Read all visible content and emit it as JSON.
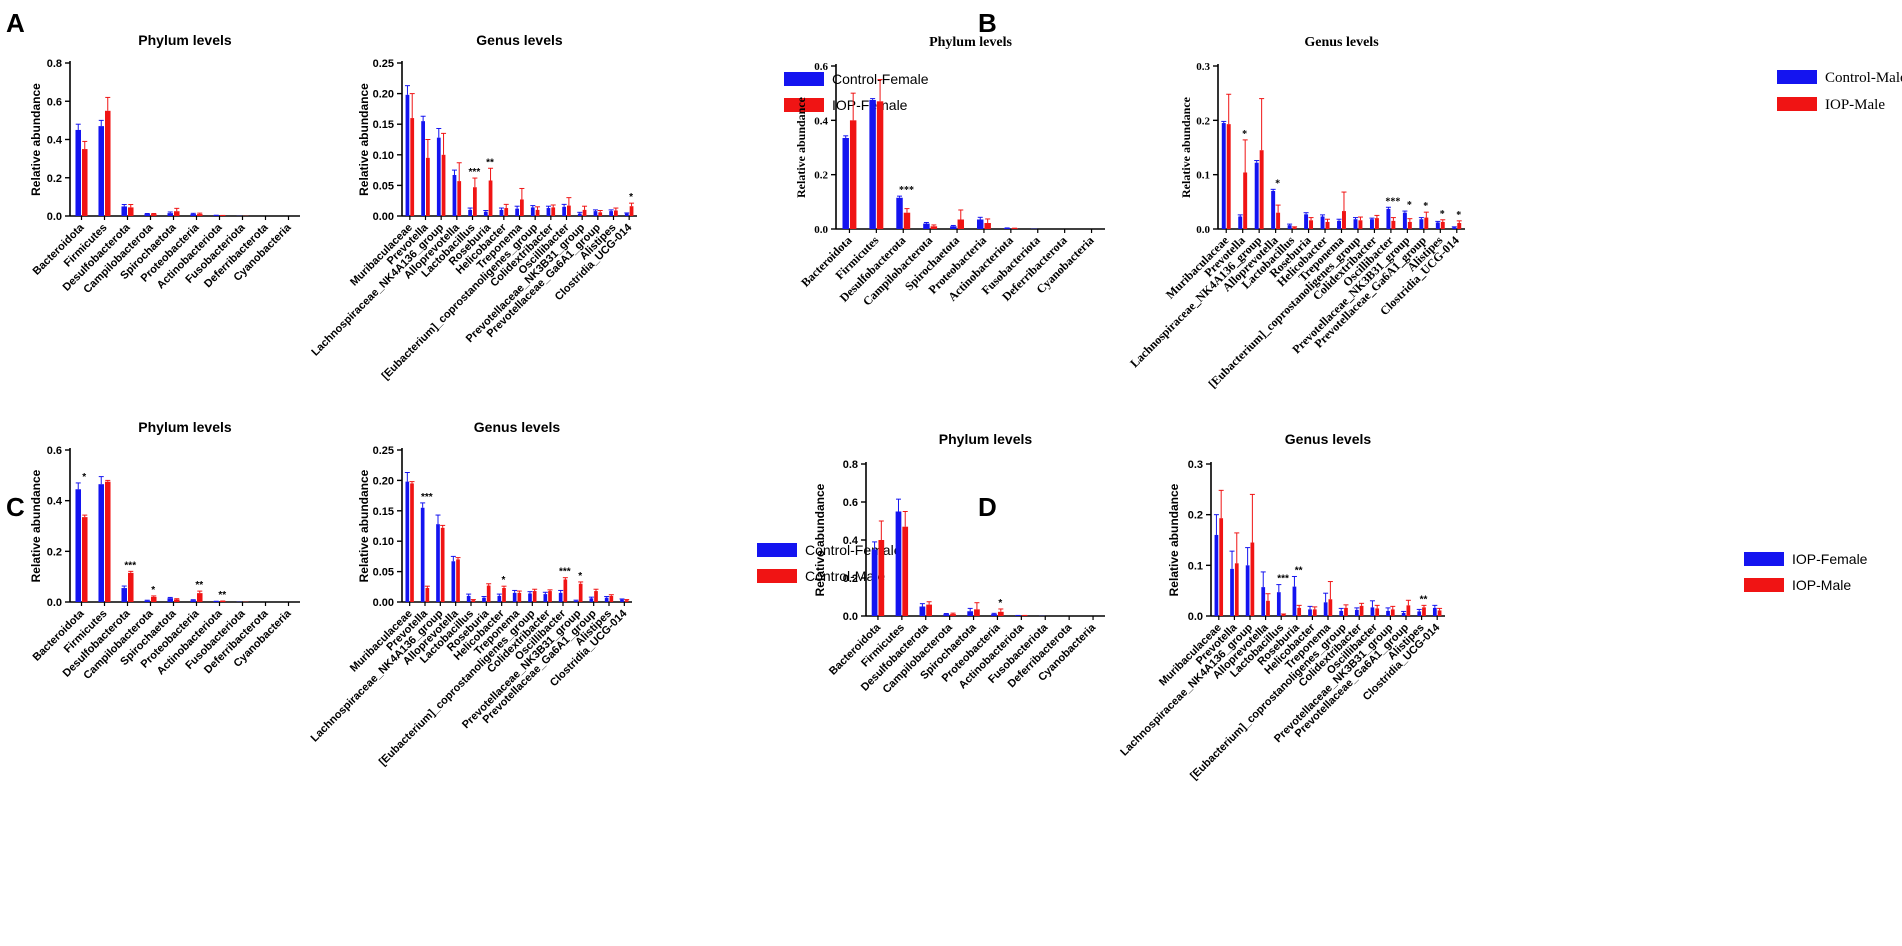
{
  "colors": {
    "blue": "#1414F0",
    "red": "#F01414",
    "axis": "#000000"
  },
  "panel_labels": [
    "A",
    "B",
    "C",
    "D"
  ],
  "legends": [
    [
      "Control-Female",
      "IOP-Female"
    ],
    [
      "Control-Male",
      "IOP-Male"
    ],
    [
      "Control-Female",
      "Control-Male"
    ],
    [
      "IOP-Female",
      "IOP-Male"
    ]
  ],
  "chart_data": [
    {
      "panel": "A",
      "type": "bar",
      "title": "Phylum levels",
      "ylabel": "Relative abundance",
      "xlabel": "",
      "ylim": [
        0,
        0.8
      ],
      "yticks": [
        0.0,
        0.2,
        0.4,
        0.6,
        0.8
      ],
      "ytick_labels": [
        "0.0",
        "0.2",
        "0.4",
        "0.6",
        "0.8"
      ],
      "categories": [
        "Bacteroidota",
        "Firmicutes",
        "Desulfobacterota",
        "Campilobacterota",
        "Spirochaetota",
        "Proteobacteria",
        "Actinobacteriota",
        "Fusobacteriota",
        "Deferribacterota",
        "Cyanobacteria"
      ],
      "series": [
        {
          "name": "Control-Female",
          "values": [
            0.45,
            0.47,
            0.05,
            0.01,
            0.015,
            0.01,
            0.003,
            0.001,
            0.0,
            0.0
          ],
          "errors": [
            0.03,
            0.03,
            0.01,
            0.003,
            0.006,
            0.004,
            0.001,
            0.0,
            0.0,
            0.0
          ]
        },
        {
          "name": "IOP-Female",
          "values": [
            0.35,
            0.55,
            0.045,
            0.01,
            0.025,
            0.01,
            0.002,
            0.001,
            0.0,
            0.0
          ],
          "errors": [
            0.04,
            0.07,
            0.015,
            0.003,
            0.015,
            0.005,
            0.001,
            0.0,
            0.0,
            0.0
          ]
        }
      ],
      "annotations": []
    },
    {
      "panel": "A",
      "type": "bar",
      "title": "Genus levels",
      "ylabel": "Relative abundance",
      "xlabel": "",
      "ylim": [
        0,
        0.25
      ],
      "yticks": [
        0.0,
        0.05,
        0.1,
        0.15,
        0.2,
        0.25
      ],
      "ytick_labels": [
        "0.00",
        "0.05",
        "0.10",
        "0.15",
        "0.20",
        "0.25"
      ],
      "categories": [
        "Muribaculaceae",
        "Prevotella",
        "Lachnospiraceae_NK4A136_group",
        "Alloprevotella",
        "Lactobacillus",
        "Roseburia",
        "Helicobacter",
        "Treponema",
        "[Eubacterium]_coprostanoligenes_group",
        "Colidextribacter",
        "Oscillibacter",
        "Prevotellaceae_NK3B31_group",
        "Prevotellaceae_Ga6A1_group",
        "Alistipes",
        "Clostridia_UCG-014"
      ],
      "series": [
        {
          "name": "Control-Female",
          "values": [
            0.198,
            0.155,
            0.128,
            0.067,
            0.01,
            0.007,
            0.01,
            0.012,
            0.014,
            0.013,
            0.015,
            0.004,
            0.008,
            0.008,
            0.004
          ],
          "errors": [
            0.015,
            0.008,
            0.015,
            0.008,
            0.003,
            0.002,
            0.003,
            0.004,
            0.003,
            0.003,
            0.004,
            0.002,
            0.002,
            0.002,
            0.001
          ]
        },
        {
          "name": "IOP-Female",
          "values": [
            0.16,
            0.095,
            0.1,
            0.057,
            0.047,
            0.058,
            0.013,
            0.027,
            0.01,
            0.014,
            0.017,
            0.01,
            0.006,
            0.009,
            0.016
          ],
          "errors": [
            0.04,
            0.03,
            0.035,
            0.03,
            0.015,
            0.02,
            0.006,
            0.018,
            0.005,
            0.004,
            0.013,
            0.006,
            0.003,
            0.004,
            0.005
          ]
        }
      ],
      "annotations": [
        {
          "category": "Lactobacillus",
          "text": "***"
        },
        {
          "category": "Roseburia",
          "text": "**"
        },
        {
          "category": "Clostridia_UCG-014",
          "text": "*"
        }
      ]
    },
    {
      "panel": "B",
      "type": "bar",
      "title": "Phylum levels",
      "ylabel": "Relative abundance",
      "xlabel": "",
      "ylim": [
        0,
        0.6
      ],
      "yticks": [
        0.0,
        0.2,
        0.4,
        0.6
      ],
      "ytick_labels": [
        "0.0",
        "0.2",
        "0.4",
        "0.6"
      ],
      "categories": [
        "Bacteroidota",
        "Firmicutes",
        "Desulfobacterota",
        "Campilobacterota",
        "Spirochaetota",
        "Proteobacteria",
        "Actinobacteriota",
        "Fusobacteriota",
        "Deferribacterota",
        "Cyanobacteria"
      ],
      "series": [
        {
          "name": "Control-Male",
          "values": [
            0.335,
            0.475,
            0.115,
            0.02,
            0.01,
            0.035,
            0.003,
            0.001,
            0.0,
            0.0
          ],
          "errors": [
            0.008,
            0.005,
            0.006,
            0.004,
            0.003,
            0.008,
            0.001,
            0.0,
            0.0,
            0.0
          ]
        },
        {
          "name": "IOP-Male",
          "values": [
            0.4,
            0.47,
            0.06,
            0.01,
            0.035,
            0.022,
            0.002,
            0.0,
            0.0,
            0.0
          ],
          "errors": [
            0.1,
            0.08,
            0.015,
            0.005,
            0.035,
            0.015,
            0.001,
            0.0,
            0.0,
            0.0
          ]
        }
      ],
      "annotations": [
        {
          "category": "Desulfobacterota",
          "text": "***"
        }
      ]
    },
    {
      "panel": "B",
      "type": "bar",
      "title": "Genus levels",
      "ylabel": "Relative abundance",
      "xlabel": "",
      "ylim": [
        0,
        0.3
      ],
      "yticks": [
        0.0,
        0.1,
        0.2,
        0.3
      ],
      "ytick_labels": [
        "0.0",
        "0.1",
        "0.2",
        "0.3"
      ],
      "categories": [
        "Muribaculaceae",
        "Prevotella",
        "Lachnospiraceae_NK4A136_group",
        "Alloprevotella",
        "Lactobacillus",
        "Roseburia",
        "Helicobacter",
        "Treponema",
        "[Eubacterium]_coprostanoligenes_group",
        "Colidextribacter",
        "Oscillibacter",
        "Prevotellaceae_NK3B31_group",
        "Prevotellaceae_Ga6A1_group",
        "Alistipes",
        "Clostridia_UCG-014"
      ],
      "series": [
        {
          "name": "Control-Male",
          "values": [
            0.195,
            0.023,
            0.122,
            0.07,
            0.007,
            0.027,
            0.023,
            0.015,
            0.018,
            0.018,
            0.037,
            0.03,
            0.018,
            0.012,
            0.003
          ],
          "errors": [
            0.003,
            0.003,
            0.004,
            0.003,
            0.002,
            0.003,
            0.003,
            0.003,
            0.003,
            0.002,
            0.003,
            0.003,
            0.003,
            0.002,
            0.001
          ]
        },
        {
          "name": "IOP-Male",
          "values": [
            0.193,
            0.104,
            0.145,
            0.03,
            0.003,
            0.016,
            0.013,
            0.033,
            0.016,
            0.02,
            0.015,
            0.013,
            0.021,
            0.013,
            0.011
          ],
          "errors": [
            0.055,
            0.06,
            0.095,
            0.014,
            0.001,
            0.005,
            0.005,
            0.035,
            0.006,
            0.005,
            0.006,
            0.006,
            0.01,
            0.004,
            0.004
          ]
        }
      ],
      "annotations": [
        {
          "category": "Prevotella",
          "text": "*"
        },
        {
          "category": "Alloprevotella",
          "text": "*"
        },
        {
          "category": "Oscillibacter",
          "text": "***"
        },
        {
          "category": "Prevotellaceae_NK3B31_group",
          "text": "*"
        },
        {
          "category": "Prevotellaceae_Ga6A1_group",
          "text": "*"
        },
        {
          "category": "Alistipes",
          "text": "*"
        },
        {
          "category": "Clostridia_UCG-014",
          "text": "*"
        }
      ]
    },
    {
      "panel": "C",
      "type": "bar",
      "title": "Phylum levels",
      "ylabel": "Relative abundance",
      "xlabel": "",
      "ylim": [
        0,
        0.6
      ],
      "yticks": [
        0.0,
        0.2,
        0.4,
        0.6
      ],
      "ytick_labels": [
        "0.0",
        "0.2",
        "0.4",
        "0.6"
      ],
      "categories": [
        "Bacteroidota",
        "Firmicutes",
        "Desulfobacterota",
        "Campilobacterota",
        "Spirochaetota",
        "Proteobacteria",
        "Actinobacteriota",
        "Fusobacteriota",
        "Deferribacterota",
        "Cyanobacteria"
      ],
      "series": [
        {
          "name": "Control-Female",
          "values": [
            0.445,
            0.465,
            0.055,
            0.005,
            0.015,
            0.007,
            0.002,
            0.001,
            0.0,
            0.0
          ],
          "errors": [
            0.025,
            0.03,
            0.008,
            0.002,
            0.003,
            0.002,
            0.001,
            0.0,
            0.0,
            0.0
          ]
        },
        {
          "name": "Control-Male",
          "values": [
            0.335,
            0.475,
            0.115,
            0.02,
            0.01,
            0.035,
            0.003,
            0.001,
            0.0,
            0.0
          ],
          "errors": [
            0.008,
            0.005,
            0.006,
            0.004,
            0.003,
            0.008,
            0.001,
            0.0,
            0.0,
            0.0
          ]
        }
      ],
      "annotations": [
        {
          "category": "Bacteroidota",
          "text": "*"
        },
        {
          "category": "Desulfobacterota",
          "text": "***"
        },
        {
          "category": "Campilobacterota",
          "text": "*"
        },
        {
          "category": "Proteobacteria",
          "text": "**"
        },
        {
          "category": "Actinobacteriota",
          "text": "**"
        }
      ]
    },
    {
      "panel": "C",
      "type": "bar",
      "title": "Genus levels",
      "ylabel": "Relative abundance",
      "xlabel": "",
      "ylim": [
        0,
        0.25
      ],
      "yticks": [
        0.0,
        0.05,
        0.1,
        0.15,
        0.2,
        0.25
      ],
      "ytick_labels": [
        "0.00",
        "0.05",
        "0.10",
        "0.15",
        "0.20",
        "0.25"
      ],
      "categories": [
        "Muribaculaceae",
        "Prevotella",
        "Lachnospiraceae_NK4A136_group",
        "Alloprevotella",
        "Lactobacillus",
        "Roseburia",
        "Helicobacter",
        "Treponema",
        "[Eubacterium]_coprostanoligenes_group",
        "Colidextribacter",
        "Oscillibacter",
        "Prevotellaceae_NK3B31_group",
        "Prevotellaceae_Ga6A1_group",
        "Alistipes",
        "Clostridia_UCG-014"
      ],
      "series": [
        {
          "name": "Control-Female",
          "values": [
            0.198,
            0.155,
            0.128,
            0.067,
            0.01,
            0.007,
            0.01,
            0.015,
            0.014,
            0.013,
            0.015,
            0.002,
            0.006,
            0.007,
            0.004
          ],
          "errors": [
            0.015,
            0.008,
            0.015,
            0.008,
            0.003,
            0.002,
            0.003,
            0.004,
            0.003,
            0.003,
            0.004,
            0.001,
            0.002,
            0.002,
            0.001
          ]
        },
        {
          "name": "Control-Male",
          "values": [
            0.195,
            0.023,
            0.122,
            0.07,
            0.003,
            0.027,
            0.023,
            0.015,
            0.018,
            0.018,
            0.037,
            0.03,
            0.018,
            0.01,
            0.003
          ],
          "errors": [
            0.003,
            0.003,
            0.004,
            0.003,
            0.001,
            0.003,
            0.003,
            0.003,
            0.003,
            0.002,
            0.003,
            0.003,
            0.003,
            0.002,
            0.001
          ]
        }
      ],
      "annotations": [
        {
          "category": "Prevotella",
          "text": "***"
        },
        {
          "category": "Helicobacter",
          "text": "*"
        },
        {
          "category": "Oscillibacter",
          "text": "***"
        },
        {
          "category": "Prevotellaceae_NK3B31_group",
          "text": "*"
        }
      ]
    },
    {
      "panel": "D",
      "type": "bar",
      "title": "Phylum levels",
      "ylabel": "Relative abundance",
      "xlabel": "",
      "ylim": [
        0,
        0.8
      ],
      "yticks": [
        0.0,
        0.2,
        0.4,
        0.6,
        0.8
      ],
      "ytick_labels": [
        "0.0",
        "0.2",
        "0.4",
        "0.6",
        "0.8"
      ],
      "categories": [
        "Bacteroidota",
        "Firmicutes",
        "Desulfobacterota",
        "Campilobacterota",
        "Spirochaetota",
        "Proteobacteria",
        "Actinobacteriota",
        "Fusobacteriota",
        "Deferribacterota",
        "Cyanobacteria"
      ],
      "series": [
        {
          "name": "IOP-Female",
          "values": [
            0.35,
            0.55,
            0.05,
            0.01,
            0.025,
            0.01,
            0.002,
            0.001,
            0.0,
            0.0
          ],
          "errors": [
            0.04,
            0.065,
            0.015,
            0.003,
            0.015,
            0.004,
            0.001,
            0.0,
            0.0,
            0.0
          ]
        },
        {
          "name": "IOP-Male",
          "values": [
            0.4,
            0.47,
            0.06,
            0.01,
            0.035,
            0.022,
            0.002,
            0.0,
            0.0,
            0.0
          ],
          "errors": [
            0.1,
            0.08,
            0.015,
            0.005,
            0.035,
            0.015,
            0.001,
            0.0,
            0.0,
            0.0
          ]
        }
      ],
      "annotations": [
        {
          "category": "Proteobacteria",
          "text": "*"
        }
      ]
    },
    {
      "panel": "D",
      "type": "bar",
      "title": "Genus levels",
      "ylabel": "Relative abundance",
      "xlabel": "",
      "ylim": [
        0,
        0.3
      ],
      "yticks": [
        0.0,
        0.1,
        0.2,
        0.3
      ],
      "ytick_labels": [
        "0.0",
        "0.1",
        "0.2",
        "0.3"
      ],
      "categories": [
        "Muribaculaceae",
        "Prevotella",
        "Lachnospiraceae_NK4A136_group",
        "Alloprevotella",
        "Lactobacillus",
        "Roseburia",
        "Helicobacter",
        "Treponema",
        "[Eubacterium]_coprostanoligenes_group",
        "Colidextribacter",
        "Oscillibacter",
        "Prevotellaceae_NK3B31_group",
        "Prevotellaceae_Ga6A1_group",
        "Alistipes",
        "Clostridia_UCG-014"
      ],
      "series": [
        {
          "name": "IOP-Female",
          "values": [
            0.16,
            0.093,
            0.1,
            0.057,
            0.047,
            0.058,
            0.013,
            0.027,
            0.01,
            0.012,
            0.017,
            0.01,
            0.006,
            0.009,
            0.016
          ],
          "errors": [
            0.04,
            0.035,
            0.035,
            0.03,
            0.015,
            0.02,
            0.006,
            0.018,
            0.005,
            0.004,
            0.013,
            0.006,
            0.003,
            0.004,
            0.005
          ]
        },
        {
          "name": "IOP-Male",
          "values": [
            0.193,
            0.104,
            0.145,
            0.03,
            0.003,
            0.016,
            0.013,
            0.033,
            0.016,
            0.02,
            0.015,
            0.013,
            0.021,
            0.017,
            0.011
          ],
          "errors": [
            0.055,
            0.06,
            0.095,
            0.014,
            0.001,
            0.005,
            0.005,
            0.035,
            0.006,
            0.005,
            0.006,
            0.006,
            0.01,
            0.004,
            0.004
          ]
        }
      ],
      "annotations": [
        {
          "category": "Lactobacillus",
          "text": "***"
        },
        {
          "category": "Roseburia",
          "text": "**"
        },
        {
          "category": "Alistipes",
          "text": "**"
        }
      ]
    }
  ]
}
